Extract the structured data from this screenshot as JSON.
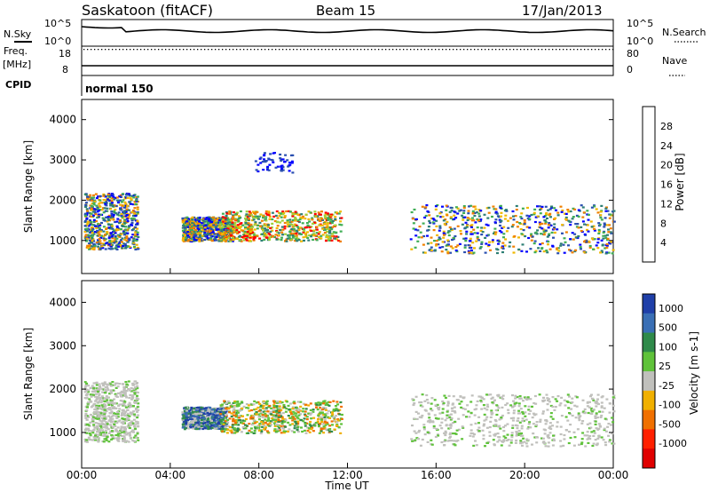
{
  "header": {
    "station": "Saskatoon (fitACF)",
    "beam": "Beam 15",
    "date": "17/Jan/2013"
  },
  "status_panel": {
    "nsky_label": "N.Sky",
    "nsky_ticks": [
      "10^5",
      "10^0"
    ],
    "nsearch_label": "N.Search",
    "nsearch_ticks": [
      "10^5",
      "10^0"
    ],
    "freq_label": "Freq.",
    "freq_unit": "[MHz]",
    "freq_ticks": [
      "18",
      "8"
    ],
    "nave_label": "Nave",
    "nave_ticks": [
      "80",
      "0"
    ],
    "cpid_label": "CPID",
    "cpid_value": "normal 150"
  },
  "chart_data": [
    {
      "type": "heatmap",
      "name": "power",
      "ylabel": "Slant Range [km]",
      "ylim": [
        180,
        4500
      ],
      "yticks": [
        1000,
        2000,
        3000,
        4000
      ],
      "xlim": [
        0,
        24
      ],
      "colorbar": {
        "label": "Power [dB]",
        "ticks": [
          "4",
          "8",
          "12",
          "16",
          "20",
          "24",
          "28"
        ],
        "range": [
          0,
          32
        ],
        "colors": [
          "#0000ff",
          "#2a4fb0",
          "#2e7f74",
          "#3fae55",
          "#9fd23a",
          "#f0b800",
          "#f08000",
          "#ff0000"
        ]
      },
      "regions": [
        {
          "t": [
            0.1,
            2.5
          ],
          "r": [
            800,
            2200
          ],
          "level": "medium"
        },
        {
          "t": [
            4.5,
            6.8
          ],
          "r": [
            1000,
            1600
          ],
          "level": "medium"
        },
        {
          "t": [
            6.2,
            11.7
          ],
          "r": [
            1000,
            1750
          ],
          "level": "high"
        },
        {
          "t": [
            14.8,
            24.0
          ],
          "r": [
            700,
            1900
          ],
          "level": "medium"
        },
        {
          "t": [
            7.8,
            9.5
          ],
          "r": [
            2700,
            3200
          ],
          "level": "low"
        }
      ]
    },
    {
      "type": "heatmap",
      "name": "velocity",
      "ylabel": "Slant Range [km]",
      "ylim": [
        180,
        4500
      ],
      "yticks": [
        1000,
        2000,
        3000,
        4000
      ],
      "xlim": [
        0,
        24
      ],
      "colorbar": {
        "label": "Velocity [m s-1]",
        "ticks": [
          "1000",
          "500",
          "100",
          "25",
          "-25",
          "-100",
          "-500",
          "-1000"
        ],
        "colors": [
          "#1f3fa8",
          "#3a6fb5",
          "#2f8a4a",
          "#5fc23a",
          "#c0c0bc",
          "#f0b000",
          "#f07000",
          "#ff2000",
          "#e00000"
        ]
      },
      "regions": [
        {
          "t": [
            0.1,
            2.5
          ],
          "r": [
            800,
            2200
          ],
          "level": "ground"
        },
        {
          "t": [
            4.5,
            6.5
          ],
          "r": [
            1100,
            1600
          ],
          "level": "positive"
        },
        {
          "t": [
            6.2,
            11.7
          ],
          "r": [
            1000,
            1750
          ],
          "level": "mixed"
        },
        {
          "t": [
            14.8,
            24.0
          ],
          "r": [
            700,
            1900
          ],
          "level": "ground"
        }
      ]
    }
  ],
  "time_axis": {
    "label": "Time UT",
    "ticks": [
      "00:00",
      "04:00",
      "08:00",
      "12:00",
      "16:00",
      "20:00",
      "00:00"
    ]
  }
}
